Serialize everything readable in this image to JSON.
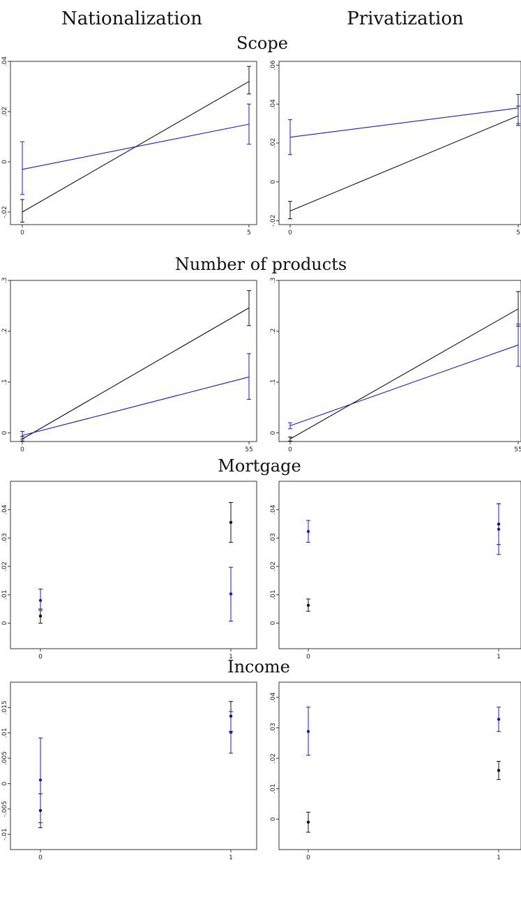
{
  "column_titles": [
    "Nationalization",
    "Privatization"
  ],
  "row_titles": [
    "Scope",
    "Number of products",
    "Mortgage",
    "Income"
  ],
  "colors": {
    "black_series": "#111111",
    "blue_series": "#1a1acc"
  },
  "chart_data": [
    {
      "type": "line",
      "row": "Scope",
      "column": "Nationalization",
      "x": [
        0,
        5
      ],
      "xticks": [
        "0",
        "5"
      ],
      "ylim": [
        -0.025,
        0.04
      ],
      "yticks": [
        -0.02,
        0,
        0.02,
        0.04
      ],
      "ytick_labels": [
        "-.02",
        "0",
        ".02",
        ".04"
      ],
      "series": [
        {
          "color": "black",
          "values": [
            -0.02,
            0.032
          ],
          "ci_low": [
            -0.024,
            0.027
          ],
          "ci_high": [
            -0.015,
            0.038
          ]
        },
        {
          "color": "blue",
          "values": [
            -0.003,
            0.015
          ],
          "ci_low": [
            -0.013,
            0.007
          ],
          "ci_high": [
            0.008,
            0.023
          ]
        }
      ]
    },
    {
      "type": "line",
      "row": "Scope",
      "column": "Privatization",
      "x": [
        0,
        5
      ],
      "xticks": [
        "0",
        "5"
      ],
      "ylim": [
        -0.022,
        0.062
      ],
      "yticks": [
        -0.02,
        0,
        0.02,
        0.04,
        0.06
      ],
      "ytick_labels": [
        "-.02",
        "0",
        ".02",
        ".04",
        ".06"
      ],
      "series": [
        {
          "color": "black",
          "values": [
            -0.015,
            0.034
          ],
          "ci_low": [
            -0.019,
            0.029
          ],
          "ci_high": [
            -0.01,
            0.039
          ]
        },
        {
          "color": "blue",
          "values": [
            0.023,
            0.038
          ],
          "ci_low": [
            0.014,
            0.03
          ],
          "ci_high": [
            0.032,
            0.045
          ]
        }
      ]
    },
    {
      "type": "line",
      "row": "Number of products",
      "column": "Nationalization",
      "x": [
        0,
        55
      ],
      "xticks": [
        "0",
        "55"
      ],
      "ylim": [
        -0.017,
        0.3
      ],
      "yticks": [
        0,
        0.1,
        0.2,
        0.3
      ],
      "ytick_labels": [
        "0",
        ".1",
        ".2",
        ".3"
      ],
      "series": [
        {
          "color": "black",
          "values": [
            -0.012,
            0.246
          ],
          "ci_low": [
            -0.016,
            0.211
          ],
          "ci_high": [
            -0.007,
            0.28
          ]
        },
        {
          "color": "blue",
          "values": [
            -0.005,
            0.11
          ],
          "ci_low": [
            -0.012,
            0.066
          ],
          "ci_high": [
            0.003,
            0.156
          ]
        }
      ]
    },
    {
      "type": "line",
      "row": "Number of products",
      "column": "Privatization",
      "x": [
        0,
        55
      ],
      "xticks": [
        "0",
        "55"
      ],
      "ylim": [
        -0.017,
        0.3
      ],
      "yticks": [
        0,
        0.1,
        0.2,
        0.3
      ],
      "ytick_labels": [
        "0",
        ".1",
        ".2",
        ".3"
      ],
      "series": [
        {
          "color": "black",
          "values": [
            -0.012,
            0.244
          ],
          "ci_low": [
            -0.016,
            0.21
          ],
          "ci_high": [
            -0.008,
            0.278
          ]
        },
        {
          "color": "blue",
          "values": [
            0.014,
            0.173
          ],
          "ci_low": [
            0.008,
            0.131
          ],
          "ci_high": [
            0.02,
            0.214
          ]
        }
      ]
    },
    {
      "type": "scatter",
      "row": "Mortgage",
      "column": "Nationalization",
      "x": [
        0,
        1
      ],
      "xticks": [
        "0",
        "1"
      ],
      "ylim": [
        -0.009,
        0.05
      ],
      "yticks": [
        0,
        0.01,
        0.02,
        0.03,
        0.04
      ],
      "ytick_labels": [
        "0",
        ".01",
        ".02",
        ".03",
        ".04"
      ],
      "series": [
        {
          "color": "black",
          "values": [
            0.0025,
            0.0355
          ],
          "ci_low": [
            0.0,
            0.0285
          ],
          "ci_high": [
            0.005,
            0.0425
          ]
        },
        {
          "color": "blue",
          "values": [
            0.008,
            0.0103
          ],
          "ci_low": [
            0.0045,
            0.0007
          ],
          "ci_high": [
            0.012,
            0.0197
          ]
        }
      ]
    },
    {
      "type": "scatter",
      "row": "Mortgage",
      "column": "Privatization",
      "x": [
        0,
        1
      ],
      "xticks": [
        "0",
        "1"
      ],
      "ylim": [
        -0.009,
        0.05
      ],
      "yticks": [
        0,
        0.01,
        0.02,
        0.03,
        0.04
      ],
      "ytick_labels": [
        "0",
        ".01",
        ".02",
        ".03",
        ".04"
      ],
      "series": [
        {
          "color": "black",
          "values": [
            0.0063,
            0.0349
          ],
          "ci_low": [
            0.0042,
            0.0277
          ],
          "ci_high": [
            0.0085,
            0.0421
          ]
        },
        {
          "color": "blue",
          "values": [
            0.0323,
            0.0331
          ],
          "ci_low": [
            0.0285,
            0.0242
          ],
          "ci_high": [
            0.0362,
            0.0421
          ]
        }
      ]
    },
    {
      "type": "scatter",
      "row": "Income",
      "column": "Nationalization",
      "x": [
        0,
        1
      ],
      "xticks": [
        "0",
        "1"
      ],
      "ylim": [
        -0.013,
        0.02
      ],
      "yticks": [
        -0.01,
        -0.005,
        0,
        0.005,
        0.01,
        0.015
      ],
      "ytick_labels": [
        "-.01",
        "-.005",
        "0",
        ".005",
        ".01",
        ".015"
      ],
      "series": [
        {
          "color": "black",
          "values": [
            -0.0053,
            0.0133
          ],
          "ci_low": [
            -0.0087,
            0.0103
          ],
          "ci_high": [
            -0.002,
            0.0162
          ]
        },
        {
          "color": "blue",
          "values": [
            0.0007,
            0.0101
          ],
          "ci_low": [
            -0.0077,
            0.006
          ],
          "ci_high": [
            0.009,
            0.0142
          ]
        }
      ]
    },
    {
      "type": "scatter",
      "row": "Income",
      "column": "Privatization",
      "x": [
        0,
        1
      ],
      "xticks": [
        "0",
        "1"
      ],
      "ylim": [
        -0.01,
        0.045
      ],
      "yticks": [
        0,
        0.01,
        0.02,
        0.03,
        0.04
      ],
      "ytick_labels": [
        "0",
        ".01",
        ".02",
        ".03",
        ".04"
      ],
      "series": [
        {
          "color": "black",
          "values": [
            -0.001,
            0.016
          ],
          "ci_low": [
            -0.0043,
            0.013
          ],
          "ci_high": [
            0.0023,
            0.019
          ]
        },
        {
          "color": "blue",
          "values": [
            0.0288,
            0.0328
          ],
          "ci_low": [
            0.021,
            0.0288
          ],
          "ci_high": [
            0.0368,
            0.0368
          ]
        }
      ]
    }
  ]
}
